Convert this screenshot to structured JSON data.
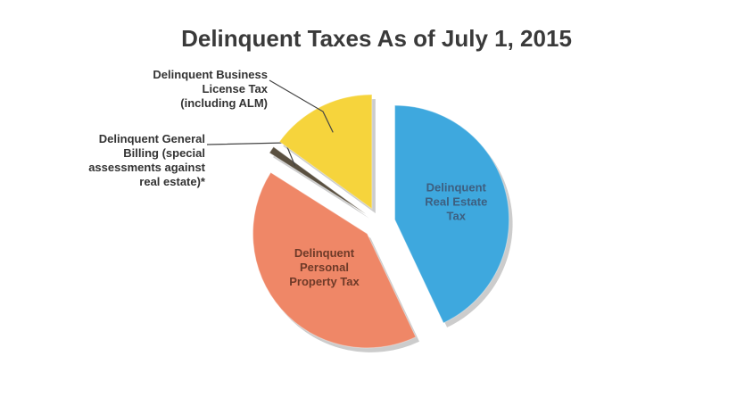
{
  "chart_data": {
    "type": "pie",
    "title": "Delinquent Taxes As of July 1, 2015",
    "categories": [
      "Delinquent\nReal Estate\nTax",
      "Delinquent\nPersonal\nProperty Tax",
      "Delinquent General\nBilling (special\nassessments against\nreal estate)*",
      "Delinquent Business\nLicense Tax\n(including ALM)"
    ],
    "values": [
      43,
      41,
      1,
      15
    ],
    "colors": [
      "#3ea8de",
      "#ef8767",
      "#5a5040",
      "#f6d43c"
    ]
  }
}
